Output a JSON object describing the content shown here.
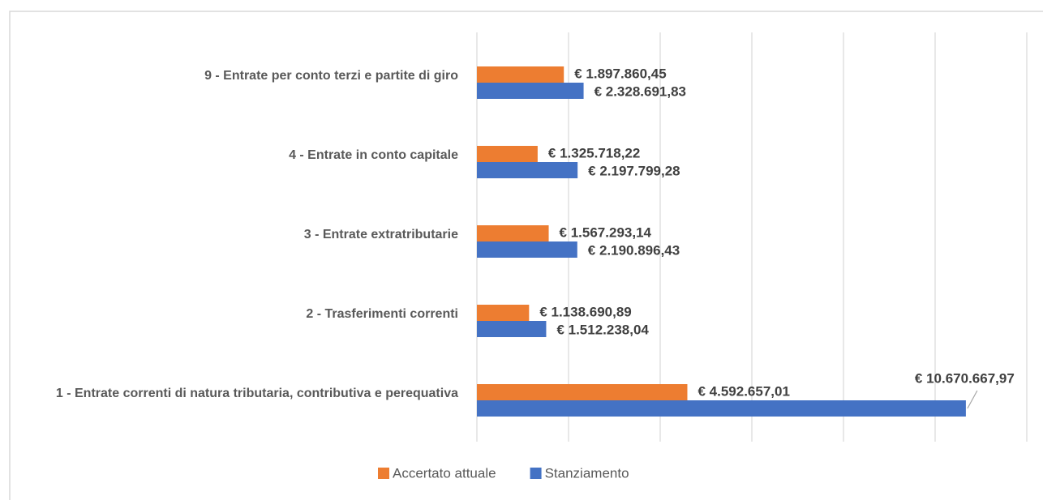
{
  "chart_data": {
    "type": "bar",
    "orientation": "horizontal",
    "categories": [
      "1 - Entrate correnti di natura tributaria, contributiva e perequativa",
      "2 - Trasferimenti correnti",
      "3 - Entrate extratributarie",
      "4 - Entrate in conto capitale",
      "9 - Entrate per conto terzi e partite di giro"
    ],
    "series": [
      {
        "name": "Accertato attuale",
        "color": "#ed7d31",
        "values": [
          4592657.01,
          1138690.89,
          1567293.14,
          1325718.22,
          1897860.45
        ],
        "value_labels": [
          "€ 4.592.657,01",
          "€ 1.138.690,89",
          "€ 1.567.293,14",
          "€ 1.325.718,22",
          "€ 1.897.860,45"
        ]
      },
      {
        "name": "Stanziamento",
        "color": "#4472c4",
        "values": [
          10670667.97,
          1512238.04,
          2190896.43,
          2197799.28,
          2328691.83
        ],
        "value_labels": [
          "€ 10.670.667,97",
          "€ 1.512.238,04",
          "€ 2.190.896,43",
          "€ 2.197.799,28",
          "€ 2.328.691,83"
        ]
      }
    ],
    "xlim": [
      0,
      12000000
    ],
    "xticks": [
      0,
      2000000,
      4000000,
      6000000,
      8000000,
      10000000,
      12000000
    ],
    "grid": true,
    "legend": "bottom"
  }
}
